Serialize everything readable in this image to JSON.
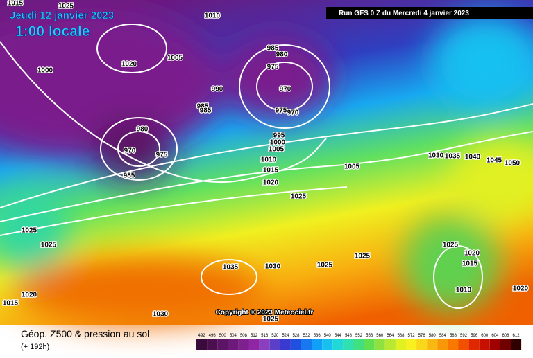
{
  "header": {
    "date": "Jeudi 12 janvier 2023",
    "time": "1:00 locale",
    "run": "Run GFS 0 Z du Mercredi 4 janvier 2023"
  },
  "copyright": "Copyright © 2023 Meteociel.fr",
  "footer": {
    "title": "Géop. Z500 & pression au sol",
    "lead": "(+ 192h)"
  },
  "isobar_labels": [
    "1015",
    "1025",
    "1010",
    "1005",
    "1020",
    "1000",
    "985",
    "980",
    "975",
    "990",
    "970",
    "985",
    "985",
    "975",
    "970",
    "980",
    "970",
    "975",
    "985",
    "995",
    "1000",
    "1005",
    "1010",
    "1015",
    "1020",
    "1025",
    "1005",
    "1030",
    "1035",
    "1040",
    "1045",
    "1050",
    "1025",
    "1025",
    "1035",
    "1030",
    "1025",
    "1025",
    "1025",
    "1020",
    "1015",
    "1010",
    "1020",
    "1015",
    "1020",
    "1030",
    "1025"
  ],
  "scale": {
    "values": [
      492,
      496,
      500,
      504,
      508,
      512,
      516,
      520,
      524,
      528,
      532,
      536,
      540,
      544,
      548,
      552,
      556,
      560,
      564,
      568,
      572,
      576,
      580,
      584,
      588,
      592,
      596,
      600,
      604,
      608,
      612
    ],
    "colors": [
      "#3a0a3a",
      "#4b0f4f",
      "#5c1464",
      "#6e1a7a",
      "#7f208f",
      "#8f26a4",
      "#8a3fbf",
      "#5b3fc8",
      "#3a3ad0",
      "#2050e0",
      "#1878f0",
      "#10a0f8",
      "#18c0f0",
      "#20d8d8",
      "#30e0b0",
      "#40e080",
      "#60e050",
      "#90e040",
      "#b8e830",
      "#e0f020",
      "#f8f020",
      "#f8d818",
      "#f8b810",
      "#f89808",
      "#f87800",
      "#f05000",
      "#e02800",
      "#c81000",
      "#a00000",
      "#700000",
      "#300000"
    ]
  }
}
